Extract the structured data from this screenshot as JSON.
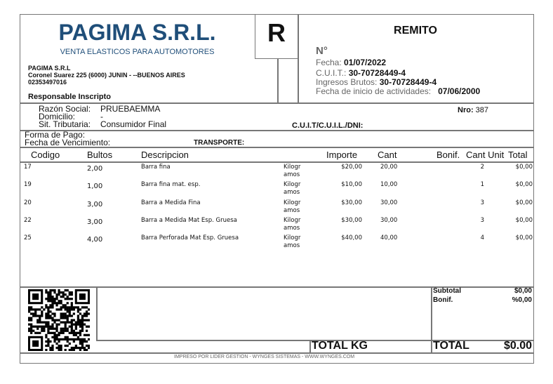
{
  "company": {
    "name": "PAGIMA S.R.L.",
    "tagline": "VENTA ELASTICOS PARA AUTOMOTORES",
    "name_small": "PAGIMA S.R.L",
    "address": "Coronel Suarez  225 (6000) JUNIN - --BUENOS AIRES",
    "phone": "02353497016",
    "tax_status": "Responsable Inscripto"
  },
  "doc": {
    "letter": "R",
    "type": "REMITO",
    "number_label": "N°",
    "fecha_label": "Fecha:",
    "fecha": "01/07/2022",
    "cuit_label": "C.U.I.T.:",
    "cuit": "30-70728449-4",
    "iibb_label": "Ingresos Brutos:",
    "iibb": "30-70728449-4",
    "inicio_label": "Fecha de inicio de actividades:",
    "inicio": "07/06/2000"
  },
  "client": {
    "razon_label": "Razón Social:",
    "razon": "PRUEBAEMMA",
    "domicilio_label": "Domicilio:",
    "domicilio": "-",
    "sit_label": "Sit. Tributaria:",
    "sit": "Consumidor Final",
    "cuit_label": "C.U.I.T/C.U.I.L./DNI:",
    "nro_label": "Nro:",
    "nro": "387"
  },
  "payment": {
    "forma_label": "Forma de Pago:",
    "venc_label": "Fecha de Vencimiento:",
    "transporte_label": "TRANSPORTE:"
  },
  "table": {
    "headers": [
      "Codigo",
      "Bultos",
      "Descripcion",
      "Importe",
      "Cant",
      "Bonif.",
      "Cant Unit",
      "Total"
    ],
    "rows": [
      {
        "codigo": "17",
        "bultos": "2,00",
        "descripcion": "Barra fina",
        "unidad1": "Kilogr",
        "unidad2": "amos",
        "importe": "$20,00",
        "cant": "20,00",
        "cant_unit": "2",
        "total": "$0,00"
      },
      {
        "codigo": "19",
        "bultos": "1,00",
        "descripcion": "Barra fina mat. esp.",
        "unidad1": "Kilogr",
        "unidad2": "amos",
        "importe": "$10,00",
        "cant": "10,00",
        "cant_unit": "1",
        "total": "$0,00"
      },
      {
        "codigo": "20",
        "bultos": "3,00",
        "descripcion": "Barra a Medida Fina",
        "unidad1": "Kilogr",
        "unidad2": "amos",
        "importe": "$30,00",
        "cant": "30,00",
        "cant_unit": "3",
        "total": "$0,00"
      },
      {
        "codigo": "22",
        "bultos": "3,00",
        "descripcion": "Barra a Medida Mat Esp. Gruesa",
        "unidad1": "Kilogr",
        "unidad2": "amos",
        "importe": "$30,00",
        "cant": "30,00",
        "cant_unit": "3",
        "total": "$0,00"
      },
      {
        "codigo": "25",
        "bultos": "4,00",
        "descripcion": "Barra Perforada Mat Esp. Gruesa",
        "unidad1": "Kilogr",
        "unidad2": "amos",
        "importe": "$40,00",
        "cant": "40,00",
        "cant_unit": "4",
        "total": "$0,00"
      }
    ]
  },
  "totals": {
    "subtotal_label": "Subtotal",
    "subtotal": "$0,00",
    "bonif_label": "Bonif.",
    "bonif": "%0,00",
    "total_kg_label": "TOTAL KG",
    "total_label": "TOTAL",
    "total": "$0.00"
  },
  "footer": "IMPRESO POR LIDER GESTION - WYNGES SISTEMAS - WWW.WYNGES.COM",
  "colors": {
    "brand": "#1f4e79",
    "border": "#777777"
  }
}
